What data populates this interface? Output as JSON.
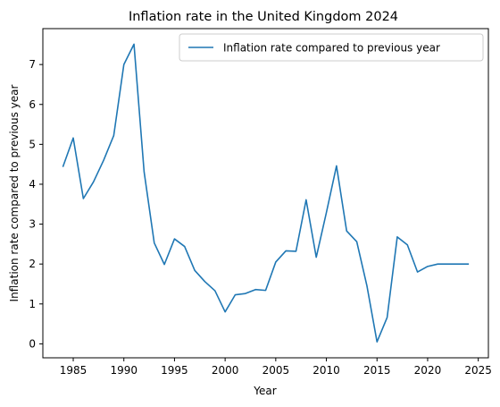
{
  "chart_data": {
    "type": "line",
    "title": "Inflation rate in the United Kingdom 2024",
    "xlabel": "Year",
    "ylabel": "Inflation rate compared to previous year",
    "xlim": [
      1982.0,
      2026.0
    ],
    "ylim": [
      -0.35,
      7.9
    ],
    "xticks": [
      1985,
      1990,
      1995,
      2000,
      2005,
      2010,
      2015,
      2020,
      2025
    ],
    "yticks": [
      0,
      1,
      2,
      3,
      4,
      5,
      6,
      7
    ],
    "grid": false,
    "legend_position": "top-right",
    "colors": {
      "series": "#1f77b4",
      "axes": "#000000",
      "background": "#ffffff"
    },
    "series": [
      {
        "name": "Inflation rate compared to previous year",
        "x": [
          1984,
          1985,
          1986,
          1987,
          1988,
          1989,
          1990,
          1991,
          1992,
          1993,
          1994,
          1995,
          1996,
          1997,
          1998,
          1999,
          2000,
          2001,
          2002,
          2003,
          2004,
          2005,
          2006,
          2007,
          2008,
          2009,
          2010,
          2011,
          2012,
          2013,
          2014,
          2015,
          2016,
          2017,
          2018,
          2019,
          2020,
          2021,
          2022,
          2023,
          2024
        ],
        "y": [
          4.45,
          5.16,
          3.64,
          4.06,
          4.6,
          5.22,
          7.0,
          7.51,
          4.31,
          2.53,
          1.99,
          2.63,
          2.44,
          1.84,
          1.56,
          1.33,
          0.8,
          1.23,
          1.26,
          1.36,
          1.34,
          2.05,
          2.33,
          2.32,
          3.61,
          2.17,
          3.29,
          4.46,
          2.83,
          2.56,
          1.46,
          0.05,
          0.66,
          2.68,
          2.48,
          1.8,
          1.94,
          2.0,
          2.0,
          2.0,
          2.0
        ]
      }
    ]
  }
}
